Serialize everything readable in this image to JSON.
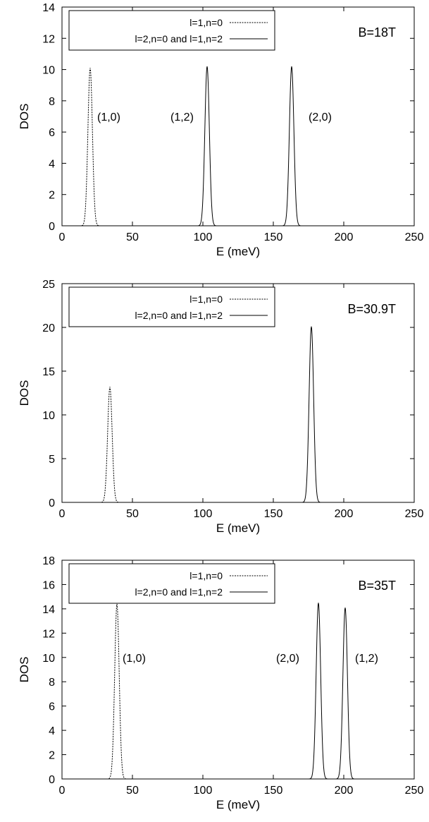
{
  "chart_data": [
    {
      "type": "line",
      "xlabel": "E (meV)",
      "ylabel": "DOS",
      "xlim": [
        0,
        250
      ],
      "ylim": [
        0,
        14
      ],
      "xticks": [
        0,
        50,
        100,
        150,
        200,
        250
      ],
      "yticks": [
        0,
        2,
        4,
        6,
        8,
        10,
        12,
        14
      ],
      "grid": false,
      "legend_position": "top-left",
      "field_label": "B=18T",
      "series": [
        {
          "name": "l=1,n=0",
          "style": "dashed",
          "peaks": [
            {
              "center": 20,
              "height": 10.1
            }
          ]
        },
        {
          "name": "l=2,n=0 and l=1,n=2",
          "style": "solid",
          "peaks": [
            {
              "center": 103,
              "height": 10.2
            },
            {
              "center": 163,
              "height": 10.2
            }
          ]
        }
      ],
      "annotations": [
        {
          "text": "(1,0)",
          "x": 25,
          "y": 7
        },
        {
          "text": "(1,2)",
          "x": 77,
          "y": 7
        },
        {
          "text": "(2,0)",
          "x": 175,
          "y": 7
        }
      ]
    },
    {
      "type": "line",
      "xlabel": "E (meV)",
      "ylabel": "DOS",
      "xlim": [
        0,
        250
      ],
      "ylim": [
        0,
        25
      ],
      "xticks": [
        0,
        50,
        100,
        150,
        200,
        250
      ],
      "yticks": [
        0,
        5,
        10,
        15,
        20,
        25
      ],
      "grid": false,
      "legend_position": "top-left",
      "field_label": "B=30.9T",
      "series": [
        {
          "name": "l=1,n=0",
          "style": "dashed",
          "peaks": [
            {
              "center": 34,
              "height": 13.2
            }
          ]
        },
        {
          "name": "l=2,n=0 and l=1,n=2",
          "style": "solid",
          "peaks": [
            {
              "center": 177,
              "height": 20.1
            }
          ]
        }
      ],
      "annotations": []
    },
    {
      "type": "line",
      "xlabel": "E (meV)",
      "ylabel": "DOS",
      "xlim": [
        0,
        250
      ],
      "ylim": [
        0,
        18
      ],
      "xticks": [
        0,
        50,
        100,
        150,
        200,
        250
      ],
      "yticks": [
        0,
        2,
        4,
        6,
        8,
        10,
        12,
        14,
        16,
        18
      ],
      "grid": false,
      "legend_position": "top-left",
      "field_label": "B=35T",
      "series": [
        {
          "name": "l=1,n=0",
          "style": "dashed",
          "peaks": [
            {
              "center": 39,
              "height": 14.4
            }
          ]
        },
        {
          "name": "l=2,n=0 and l=1,n=2",
          "style": "solid",
          "peaks": [
            {
              "center": 182,
              "height": 14.5
            },
            {
              "center": 201,
              "height": 14.1
            }
          ]
        }
      ],
      "annotations": [
        {
          "text": "(1,0)",
          "x": 43,
          "y": 10
        },
        {
          "text": "(2,0)",
          "x": 152,
          "y": 10
        },
        {
          "text": "(1,2)",
          "x": 208,
          "y": 10
        }
      ]
    }
  ]
}
